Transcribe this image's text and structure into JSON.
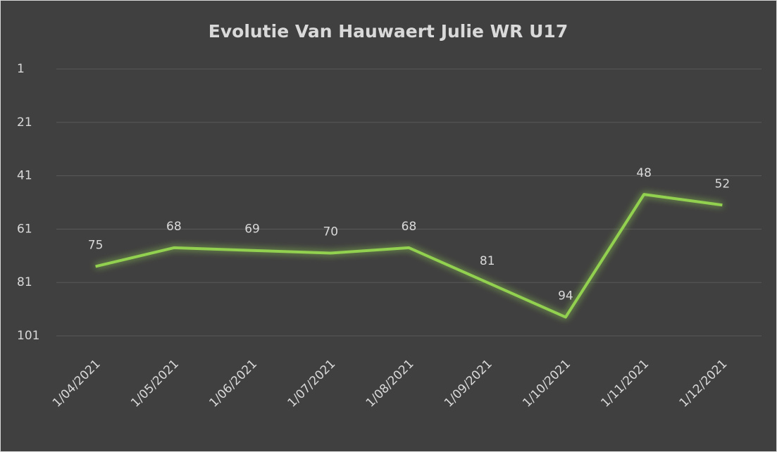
{
  "chart_data": {
    "type": "line",
    "title": "Evolutie Van Hauwaert Julie WR U17",
    "categories": [
      "1/04/2021",
      "1/05/2021",
      "1/06/2021",
      "1/07/2021",
      "1/08/2021",
      "1/09/2021",
      "1/10/2021",
      "1/11/2021",
      "1/12/2021"
    ],
    "values": [
      75,
      68,
      69,
      70,
      68,
      81,
      94,
      48,
      52
    ],
    "color": "#92d050",
    "ylim": [
      1,
      101
    ],
    "yticks": [
      1,
      21,
      41,
      61,
      81,
      101
    ],
    "y_reversed": true,
    "grid": true
  }
}
